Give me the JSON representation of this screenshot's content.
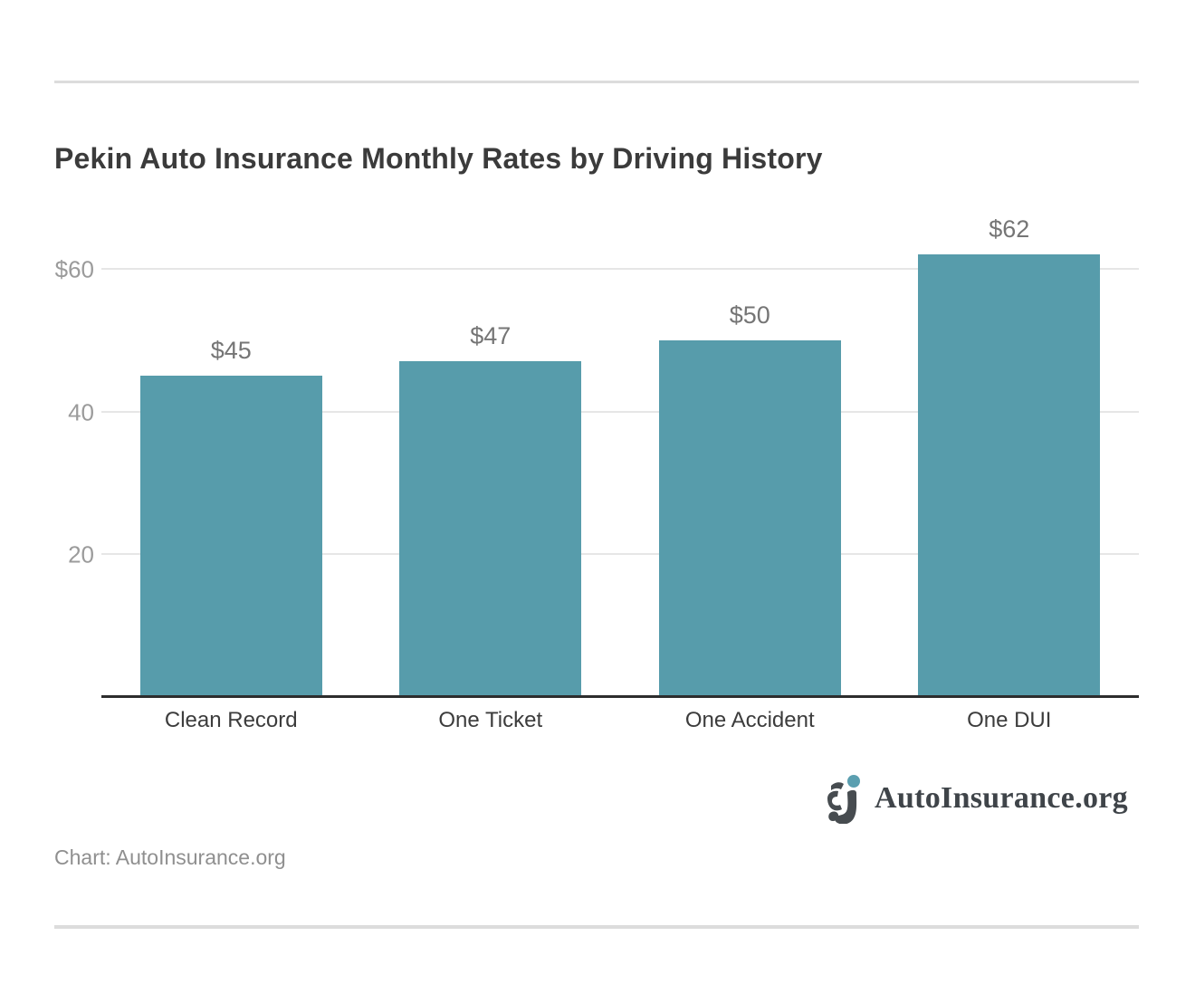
{
  "header": {
    "title": "Pekin Auto Insurance Monthly Rates by Driving History"
  },
  "chart_data": {
    "type": "bar",
    "title": "Pekin Auto Insurance Monthly Rates by Driving History",
    "categories": [
      "Clean Record",
      "One Ticket",
      "One Accident",
      "One DUI"
    ],
    "values": [
      45,
      47,
      50,
      62
    ],
    "value_labels": [
      "$45",
      "$47",
      "$50",
      "$62"
    ],
    "xlabel": "",
    "ylabel": "",
    "ylim": [
      0,
      68
    ],
    "yticks": [
      {
        "value": 60,
        "label": "$60"
      },
      {
        "value": 40,
        "label": "40"
      },
      {
        "value": 20,
        "label": "20"
      }
    ],
    "grid": true,
    "legend": false,
    "bar_color": "#579cab"
  },
  "footer": {
    "attribution": "Chart: AutoInsurance.org",
    "logo": {
      "text": "AutoInsurance.org",
      "icon": "aj-logo-icon",
      "dot_color": "#5b9fb0"
    }
  },
  "colors": {
    "bar": "#579cab",
    "title_text": "#3b3b3b",
    "value_label": "#757575",
    "tick_label": "#9b9b9b",
    "x_label": "#3c3c3c",
    "gridline": "#e6e6e6",
    "axis": "#2d2d2d",
    "divider": "#dcdcdc",
    "attribution_text": "#8f8f8f",
    "logo_text": "#3f4449",
    "logo_mark": "#474c50"
  }
}
